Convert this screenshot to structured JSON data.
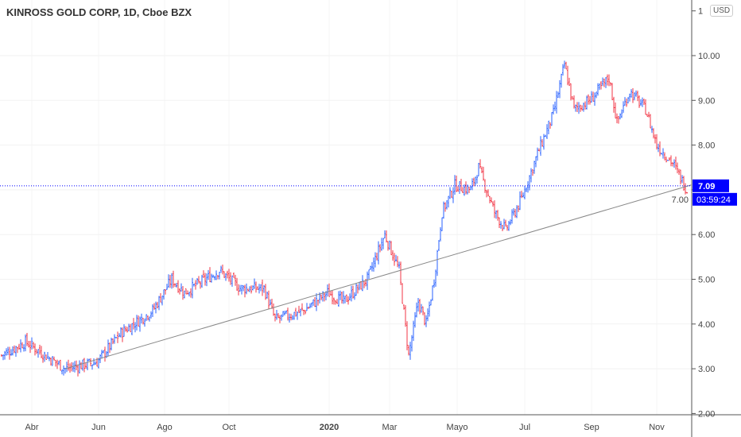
{
  "title": "KINROSS GOLD CORP, 1D, Cboe BZX",
  "currency": "USD",
  "last_price_label": "7.09",
  "countdown": "03:59:24",
  "colors": {
    "up": "#2962ff",
    "down": "#f23645",
    "accent": "#0000ff",
    "trendline": "#888888"
  },
  "chart_data": {
    "type": "ohlc",
    "title": "KINROSS GOLD CORP, 1D, Cboe BZX",
    "ylim": [
      2,
      11
    ],
    "y_ticks": [
      "2.00",
      "3.00",
      "4.00",
      "5.00",
      "6.00",
      "7.00",
      "8.00",
      "9.00",
      "10.00",
      "1"
    ],
    "x_ticks": [
      "Abr",
      "Jun",
      "Ago",
      "Oct",
      "2020",
      "Mar",
      "Mayo",
      "Jul",
      "Sep",
      "Nov"
    ],
    "last_price": 7.09,
    "approx_close_path": [
      [
        0,
        3.3
      ],
      [
        15,
        3.6
      ],
      [
        40,
        3.0
      ],
      [
        60,
        3.15
      ],
      [
        75,
        3.8
      ],
      [
        95,
        4.3
      ],
      [
        107,
        5.0
      ],
      [
        115,
        4.7
      ],
      [
        137,
        5.2
      ],
      [
        150,
        4.8
      ],
      [
        165,
        4.8
      ],
      [
        172,
        4.1
      ],
      [
        190,
        4.3
      ],
      [
        205,
        4.7
      ],
      [
        215,
        4.5
      ],
      [
        230,
        5.0
      ],
      [
        241,
        6.0
      ],
      [
        250,
        5.2
      ],
      [
        256,
        3.3
      ],
      [
        262,
        4.5
      ],
      [
        267,
        4.0
      ],
      [
        272,
        5.0
      ],
      [
        277,
        6.5
      ],
      [
        285,
        7.1
      ],
      [
        295,
        7.0
      ],
      [
        300,
        7.5
      ],
      [
        310,
        6.5
      ],
      [
        317,
        6.1
      ],
      [
        327,
        6.8
      ],
      [
        337,
        7.8
      ],
      [
        347,
        8.7
      ],
      [
        354,
        9.8
      ],
      [
        360,
        8.8
      ],
      [
        370,
        9.0
      ],
      [
        382,
        9.5
      ],
      [
        387,
        8.5
      ],
      [
        395,
        9.2
      ],
      [
        405,
        8.8
      ],
      [
        412,
        8.0
      ],
      [
        422,
        7.6
      ],
      [
        431,
        7.0
      ]
    ],
    "trendline": [
      [
        40,
        3.0
      ],
      [
        431,
        7.09
      ]
    ]
  }
}
